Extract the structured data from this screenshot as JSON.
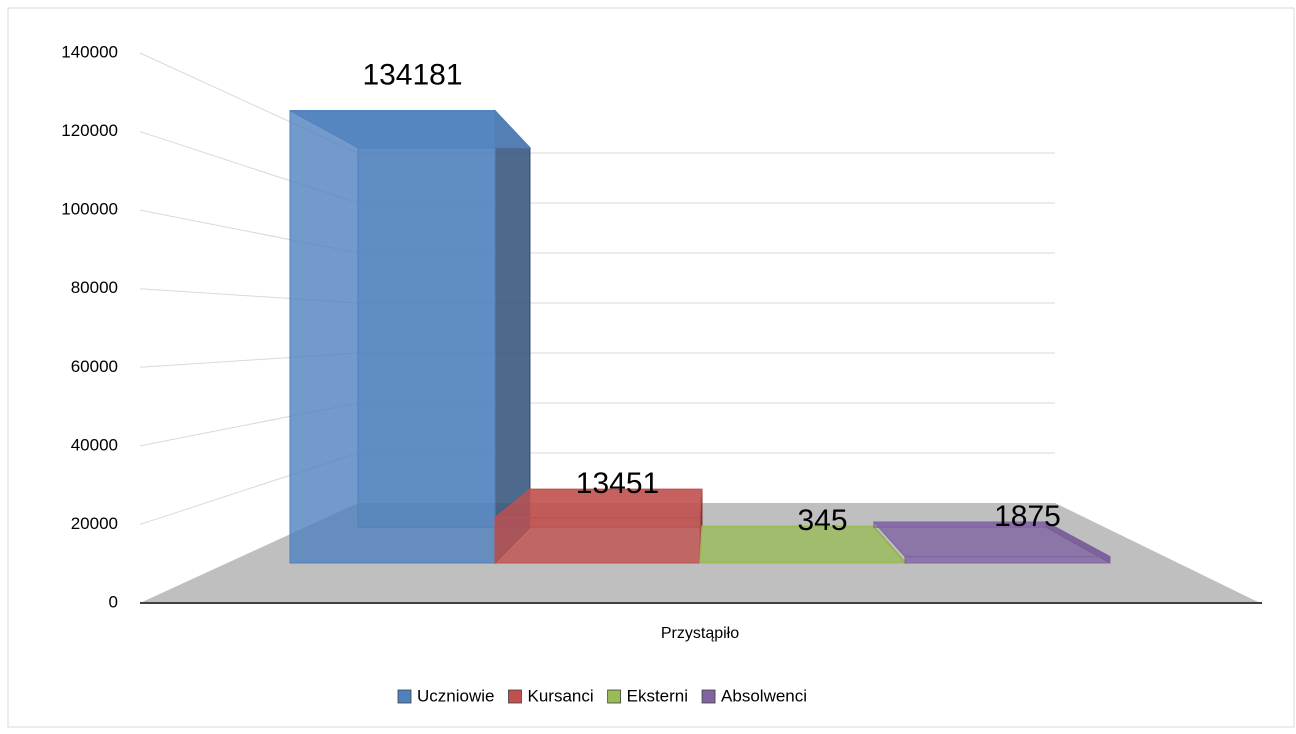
{
  "chart_data": {
    "type": "bar3d",
    "categories": [
      "Przystąpiło"
    ],
    "series": [
      {
        "name": "Uczniowie",
        "color": "#4f81bd",
        "values": [
          134181
        ]
      },
      {
        "name": "Kursanci",
        "color": "#c0504d",
        "values": [
          13451
        ]
      },
      {
        "name": "Eksterni",
        "color": "#9bbb59",
        "values": [
          345
        ]
      },
      {
        "name": "Absolwenci",
        "color": "#8064a2",
        "values": [
          1875
        ]
      }
    ],
    "ylim": [
      0,
      140000
    ],
    "yticks": [
      0,
      20000,
      40000,
      60000,
      80000,
      100000,
      120000,
      140000
    ],
    "grid": true,
    "legend": "bottom"
  }
}
